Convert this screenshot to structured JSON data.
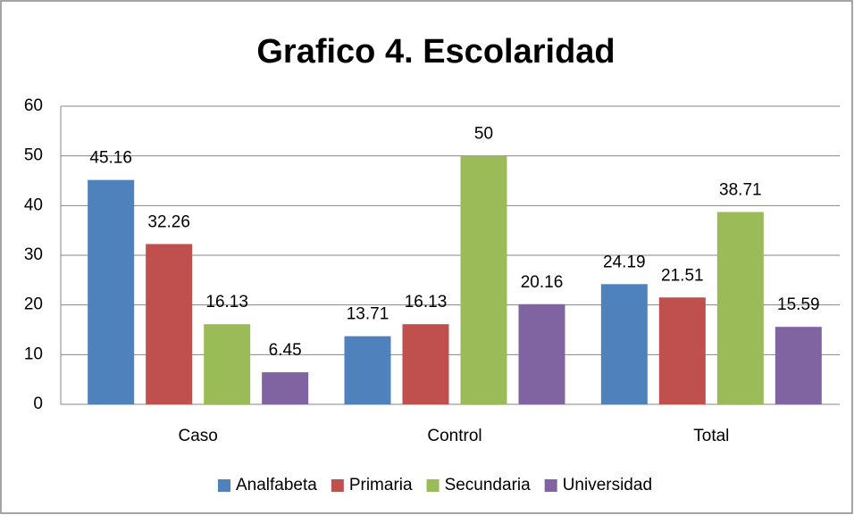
{
  "chart_data": {
    "type": "bar",
    "title": "Grafico 4. Escolaridad",
    "categories": [
      "Caso",
      "Control",
      "Total"
    ],
    "series": [
      {
        "name": "Analfabeta",
        "color": "#4f81bd",
        "values": [
          45.16,
          13.71,
          24.19
        ]
      },
      {
        "name": "Primaria",
        "color": "#c0504d",
        "values": [
          32.26,
          16.13,
          21.51
        ]
      },
      {
        "name": "Secundaria",
        "color": "#9bbb59",
        "values": [
          16.13,
          50,
          38.71
        ]
      },
      {
        "name": "Universidad",
        "color": "#8064a2",
        "values": [
          6.45,
          20.16,
          15.59
        ]
      }
    ],
    "ylim": [
      0,
      60
    ],
    "yticks": [
      0,
      10,
      20,
      30,
      40,
      50,
      60
    ],
    "grid": true,
    "legend": "bottom"
  }
}
